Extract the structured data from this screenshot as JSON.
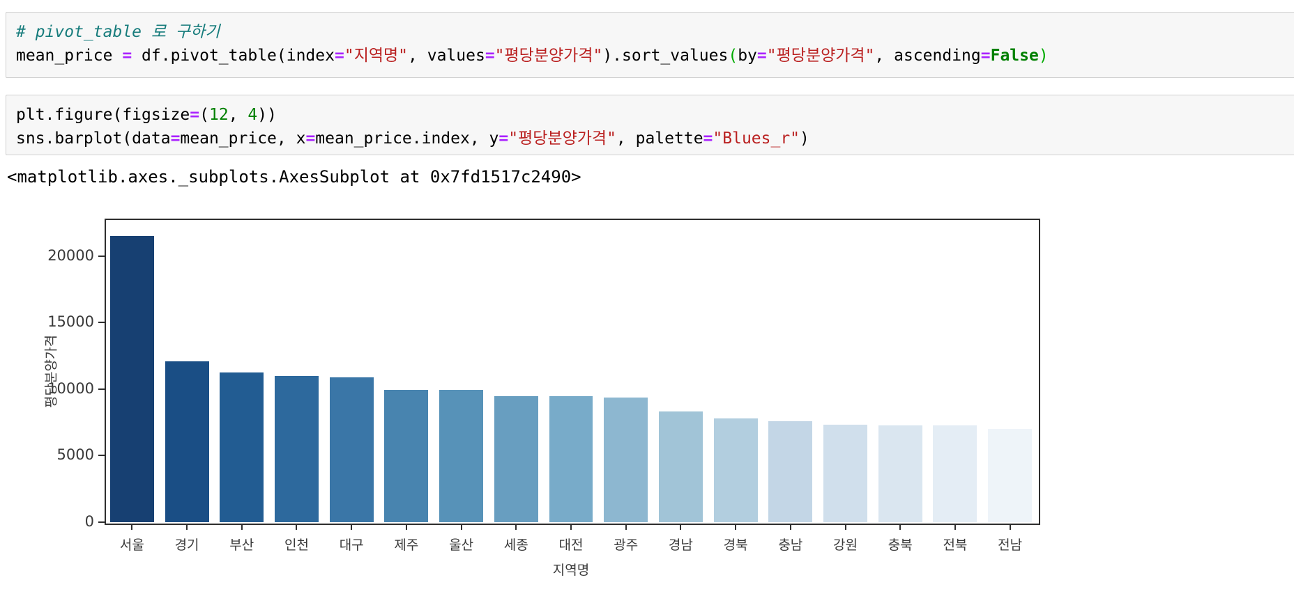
{
  "syntax_colors": {
    "comment": "#177c7c",
    "operator": "#AA22FF",
    "string": "#BA2121",
    "keyword": "#008000",
    "number": "#008000",
    "bracket": "#00AA00"
  },
  "cells": [
    {
      "name": "pivot-table-cell",
      "lines": [
        [
          {
            "t": "# pivot_table 로 구하기",
            "c": "cm"
          }
        ],
        [
          {
            "t": "mean_price "
          },
          {
            "t": "=",
            "c": "op"
          },
          {
            "t": " df.pivot_table(index"
          },
          {
            "t": "=",
            "c": "op"
          },
          {
            "t": "\"지역명\"",
            "c": "str"
          },
          {
            "t": ", values"
          },
          {
            "t": "=",
            "c": "op"
          },
          {
            "t": "\"평당분양가격\"",
            "c": "str"
          },
          {
            "t": ").sort_values"
          },
          {
            "t": "(",
            "c": "brk"
          },
          {
            "t": "by"
          },
          {
            "t": "=",
            "c": "op"
          },
          {
            "t": "\"평당분양가격\"",
            "c": "str"
          },
          {
            "t": ", ascending"
          },
          {
            "t": "=",
            "c": "op"
          },
          {
            "t": "False",
            "c": "kw"
          },
          {
            "t": ")",
            "c": "brk"
          }
        ]
      ]
    },
    {
      "name": "barplot-cell",
      "lines": [
        [
          {
            "t": "plt.figure(figsize"
          },
          {
            "t": "=",
            "c": "op"
          },
          {
            "t": "("
          },
          {
            "t": "12",
            "c": "num"
          },
          {
            "t": ", "
          },
          {
            "t": "4",
            "c": "num"
          },
          {
            "t": "))"
          }
        ],
        [
          {
            "t": "sns.barplot(data"
          },
          {
            "t": "=",
            "c": "op"
          },
          {
            "t": "mean_price, x"
          },
          {
            "t": "=",
            "c": "op"
          },
          {
            "t": "mean_price.index, y"
          },
          {
            "t": "=",
            "c": "op"
          },
          {
            "t": "\"평당분양가격\"",
            "c": "str"
          },
          {
            "t": ", palette"
          },
          {
            "t": "=",
            "c": "op"
          },
          {
            "t": "\"Blues_r\"",
            "c": "str"
          },
          {
            "t": ")"
          }
        ]
      ]
    }
  ],
  "output_text": "<matplotlib.axes._subplots.AxesSubplot at 0x7fd1517c2490>",
  "chart_data": {
    "type": "bar",
    "title": "",
    "xlabel": "지역명",
    "ylabel": "평당분양가격",
    "categories": [
      "서울",
      "경기",
      "부산",
      "인천",
      "대구",
      "제주",
      "울산",
      "세종",
      "대전",
      "광주",
      "경남",
      "경북",
      "충남",
      "강원",
      "충북",
      "전북",
      "전남"
    ],
    "values": [
      21500,
      12100,
      11250,
      11000,
      10900,
      9950,
      9930,
      9450,
      9440,
      9350,
      8300,
      7800,
      7600,
      7300,
      7250,
      7250,
      7000
    ],
    "bar_colors": [
      "#174072",
      "#1A4E85",
      "#225C92",
      "#2D699D",
      "#3A76A7",
      "#4884AF",
      "#5792B8",
      "#689EC0",
      "#78ABC9",
      "#8DB7D0",
      "#A1C4D7",
      "#B2CEDF",
      "#C3D6E6",
      "#D0DFEC",
      "#DAE6F0",
      "#E4EDF5",
      "#EEF4F9"
    ],
    "palette": "Blues_r",
    "yticks": [
      0,
      5000,
      10000,
      15000,
      20000
    ],
    "ylim": [
      0,
      22800
    ],
    "grid": false,
    "legend": null,
    "bar_rel_width": 0.8
  }
}
